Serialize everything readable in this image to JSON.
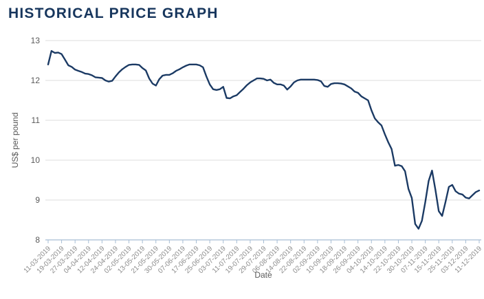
{
  "page": {
    "title": "HISTORICAL PRICE GRAPH"
  },
  "chart_data": {
    "type": "line",
    "title": "HISTORICAL PRICE GRAPH",
    "xlabel": "Date",
    "ylabel": "US$ per pound",
    "ylim": [
      8,
      13
    ],
    "y_ticks": [
      13,
      12,
      11,
      10,
      9,
      8
    ],
    "grid": "horizontal-only",
    "legend": "none",
    "x_tick_labels": [
      "11-03-2019",
      "19-03-2019",
      "27-03-2019",
      "04-04-2019",
      "12-04-2019",
      "24-04-2019",
      "02-05-2019",
      "13-05-2019",
      "21-05-2019",
      "30-05-2019",
      "07-06-2019",
      "17-06-2019",
      "25-06-2019",
      "03-07-2019",
      "11-07-2019",
      "19-07-2019",
      "29-07-2019",
      "06-08-2019",
      "14-08-2019",
      "22-08-2019",
      "02-09-2019",
      "10-09-2019",
      "18-09-2019",
      "26-09-2019",
      "04-10-2019",
      "14-10-2019",
      "22-10-2019",
      "30-10-2019",
      "07-11-2019",
      "15-11-2019",
      "25-11-2019",
      "03-12-2019",
      "11-12-2019"
    ],
    "points_per_tick_interval": 4,
    "series": [
      {
        "name": "US$ per pound",
        "values": [
          12.4,
          12.74,
          12.69,
          12.7,
          12.66,
          12.52,
          12.38,
          12.34,
          12.27,
          12.24,
          12.21,
          12.17,
          12.16,
          12.13,
          12.08,
          12.07,
          12.06,
          12.0,
          11.97,
          11.99,
          12.1,
          12.2,
          12.28,
          12.34,
          12.39,
          12.4,
          12.4,
          12.39,
          12.31,
          12.25,
          12.05,
          11.92,
          11.87,
          12.03,
          12.12,
          12.14,
          12.14,
          12.18,
          12.24,
          12.28,
          12.33,
          12.37,
          12.4,
          12.4,
          12.4,
          12.38,
          12.33,
          12.1,
          11.9,
          11.78,
          11.76,
          11.78,
          11.84,
          11.56,
          11.55,
          11.6,
          11.63,
          11.71,
          11.79,
          11.88,
          11.95,
          12.0,
          12.05,
          12.05,
          12.04,
          12.0,
          12.02,
          11.94,
          11.9,
          11.9,
          11.87,
          11.77,
          11.85,
          11.95,
          12.0,
          12.02,
          12.02,
          12.02,
          12.02,
          12.02,
          12.01,
          11.98,
          11.86,
          11.84,
          11.91,
          11.93,
          11.93,
          11.92,
          11.9,
          11.85,
          11.8,
          11.72,
          11.69,
          11.6,
          11.55,
          11.5,
          11.25,
          11.05,
          10.95,
          10.87,
          10.65,
          10.45,
          10.28,
          9.86,
          9.88,
          9.85,
          9.72,
          9.28,
          9.05,
          8.4,
          8.28,
          8.48,
          8.95,
          9.48,
          9.74,
          9.26,
          8.72,
          8.6,
          8.95,
          9.33,
          9.38,
          9.22,
          9.16,
          9.14,
          9.06,
          9.04,
          9.12,
          9.2,
          9.24
        ]
      }
    ],
    "colors": {
      "title": "#17365d",
      "line": "#1b3a64",
      "grid": "#dcdcdc",
      "axis": "#a6bdd4",
      "y_tick_label": "#595959",
      "x_tick_label": "#8c8c8c",
      "axis_title": "#595959"
    }
  }
}
